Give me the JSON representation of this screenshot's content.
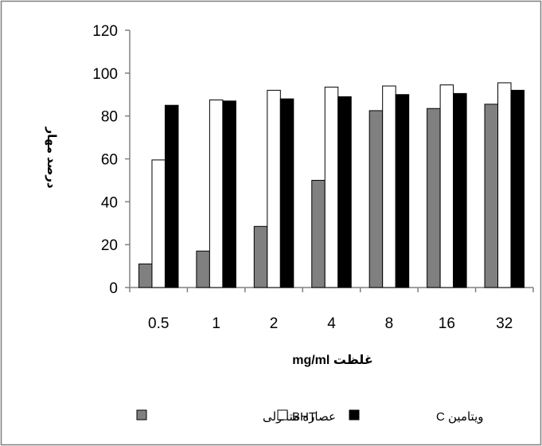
{
  "chart_data": {
    "type": "bar",
    "title": "",
    "xlabel": "mg/ml غلظت",
    "ylabel": "درصد مهار",
    "categories": [
      "0.5",
      "1",
      "2",
      "4",
      "8",
      "16",
      "32"
    ],
    "ylim": [
      0,
      120
    ],
    "yticks": [
      "0",
      "20",
      "40",
      "60",
      "80",
      "100",
      "120"
    ],
    "grid": false,
    "legend_position": "bottom",
    "series": [
      {
        "name": "عصاره متانولی",
        "color": "#808080",
        "values": [
          11,
          17,
          28.5,
          50,
          82.5,
          83.5,
          85.5
        ]
      },
      {
        "name": "BHT",
        "color": "#ffffff",
        "values": [
          59.5,
          87.5,
          92,
          93.5,
          94,
          94.5,
          95.5
        ]
      },
      {
        "name": "ویتامین C",
        "color": "#000000",
        "values": [
          85,
          87,
          88,
          89,
          90,
          90.5,
          92
        ]
      }
    ]
  }
}
